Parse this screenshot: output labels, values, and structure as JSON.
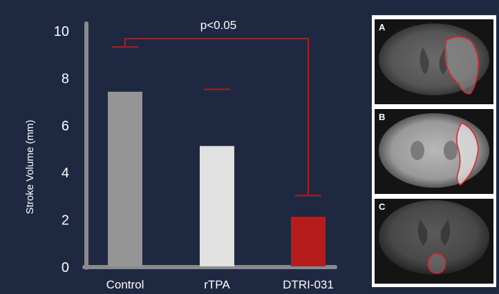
{
  "colors": {
    "background": "#1e2841",
    "axis": "#8a8a8a",
    "significance": "#b01c1c",
    "outline": "#e0242a"
  },
  "chart_data": {
    "type": "bar",
    "categories": [
      "Control",
      "rTPA",
      "DTRI-031"
    ],
    "values": [
      7.4,
      5.1,
      2.1
    ],
    "error_top": [
      9.3,
      7.5,
      3.0
    ],
    "bar_colors": [
      "#959595",
      "#e1e1e1",
      "#b71c1c"
    ],
    "error_colors": [
      "#b01c1c",
      "#b01c1c",
      "#b01c1c"
    ],
    "title": "",
    "xlabel": "",
    "ylabel": "Stroke Volume (mm)",
    "ylim": [
      0,
      10
    ],
    "yticks": [
      "0",
      "2",
      "4",
      "6",
      "8",
      "10"
    ],
    "grid": false,
    "legend": "none",
    "annotation": {
      "text": "p<0.05",
      "from": "Control",
      "to": "DTRI-031"
    }
  },
  "scans": [
    {
      "letter": "A",
      "lesion": "large right-hemisphere lesion"
    },
    {
      "letter": "B",
      "lesion": "right cortical rim lesion"
    },
    {
      "letter": "C",
      "lesion": "small central lesion"
    }
  ]
}
